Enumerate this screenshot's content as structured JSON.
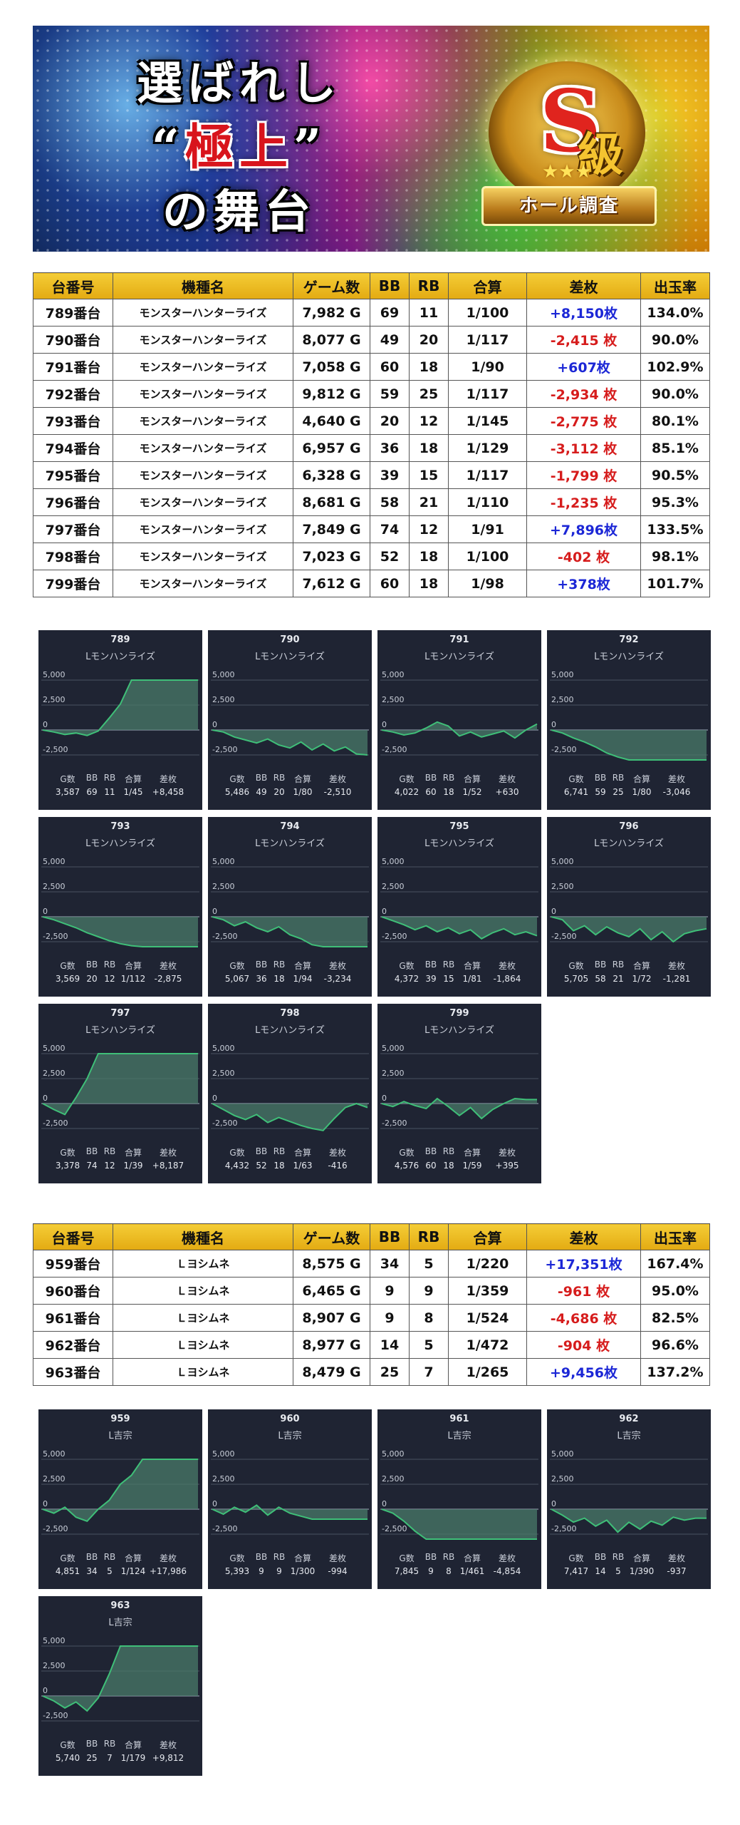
{
  "banner": {
    "line1": "選ばれし",
    "line2_quote_open": "“",
    "line2_red": "極上",
    "line2_quote_close": "”",
    "line3": "の舞台",
    "emblem_grade": "S",
    "emblem_kyu": "級",
    "emblem_stars": "★★★",
    "emblem_ribbon": "ホール調査"
  },
  "table_headers": [
    "台番号",
    "機種名",
    "ゲーム数",
    "BB",
    "RB",
    "合算",
    "差枚",
    "出玉率"
  ],
  "table1": [
    {
      "no": "789番台",
      "machine": "モンスターハンターライズ",
      "games": "7,982 G",
      "bb": "69",
      "rb": "11",
      "total": "1/100",
      "diff": "+8,150枚",
      "sign": "plus",
      "rate": "134.0%"
    },
    {
      "no": "790番台",
      "machine": "モンスターハンターライズ",
      "games": "8,077 G",
      "bb": "49",
      "rb": "20",
      "total": "1/117",
      "diff": "-2,415 枚",
      "sign": "minus",
      "rate": "90.0%"
    },
    {
      "no": "791番台",
      "machine": "モンスターハンターライズ",
      "games": "7,058 G",
      "bb": "60",
      "rb": "18",
      "total": "1/90",
      "diff": "+607枚",
      "sign": "plus",
      "rate": "102.9%"
    },
    {
      "no": "792番台",
      "machine": "モンスターハンターライズ",
      "games": "9,812 G",
      "bb": "59",
      "rb": "25",
      "total": "1/117",
      "diff": "-2,934 枚",
      "sign": "minus",
      "rate": "90.0%"
    },
    {
      "no": "793番台",
      "machine": "モンスターハンターライズ",
      "games": "4,640 G",
      "bb": "20",
      "rb": "12",
      "total": "1/145",
      "diff": "-2,775 枚",
      "sign": "minus",
      "rate": "80.1%"
    },
    {
      "no": "794番台",
      "machine": "モンスターハンターライズ",
      "games": "6,957 G",
      "bb": "36",
      "rb": "18",
      "total": "1/129",
      "diff": "-3,112 枚",
      "sign": "minus",
      "rate": "85.1%"
    },
    {
      "no": "795番台",
      "machine": "モンスターハンターライズ",
      "games": "6,328 G",
      "bb": "39",
      "rb": "15",
      "total": "1/117",
      "diff": "-1,799 枚",
      "sign": "minus",
      "rate": "90.5%"
    },
    {
      "no": "796番台",
      "machine": "モンスターハンターライズ",
      "games": "8,681 G",
      "bb": "58",
      "rb": "21",
      "total": "1/110",
      "diff": "-1,235 枚",
      "sign": "minus",
      "rate": "95.3%"
    },
    {
      "no": "797番台",
      "machine": "モンスターハンターライズ",
      "games": "7,849 G",
      "bb": "74",
      "rb": "12",
      "total": "1/91",
      "diff": "+7,896枚",
      "sign": "plus",
      "rate": "133.5%"
    },
    {
      "no": "798番台",
      "machine": "モンスターハンターライズ",
      "games": "7,023 G",
      "bb": "52",
      "rb": "18",
      "total": "1/100",
      "diff": "-402 枚",
      "sign": "minus",
      "rate": "98.1%"
    },
    {
      "no": "799番台",
      "machine": "モンスターハンターライズ",
      "games": "7,612 G",
      "bb": "60",
      "rb": "18",
      "total": "1/98",
      "diff": "+378枚",
      "sign": "plus",
      "rate": "101.7%"
    }
  ],
  "table2": [
    {
      "no": "959番台",
      "machine": "Ｌヨシムネ",
      "games": "8,575 G",
      "bb": "34",
      "rb": "5",
      "total": "1/220",
      "diff": "+17,351枚",
      "sign": "plus",
      "rate": "167.4%"
    },
    {
      "no": "960番台",
      "machine": "Ｌヨシムネ",
      "games": "6,465 G",
      "bb": "9",
      "rb": "9",
      "total": "1/359",
      "diff": "-961 枚",
      "sign": "minus",
      "rate": "95.0%"
    },
    {
      "no": "961番台",
      "machine": "Ｌヨシムネ",
      "games": "8,907 G",
      "bb": "9",
      "rb": "8",
      "total": "1/524",
      "diff": "-4,686 枚",
      "sign": "minus",
      "rate": "82.5%"
    },
    {
      "no": "962番台",
      "machine": "Ｌヨシムネ",
      "games": "8,977 G",
      "bb": "14",
      "rb": "5",
      "total": "1/472",
      "diff": "-904 枚",
      "sign": "minus",
      "rate": "96.6%"
    },
    {
      "no": "963番台",
      "machine": "Ｌヨシムネ",
      "games": "8,479 G",
      "bb": "25",
      "rb": "7",
      "total": "1/265",
      "diff": "+9,456枚",
      "sign": "plus",
      "rate": "137.2%"
    }
  ],
  "card_labels": {
    "g": "G数",
    "bb": "BB",
    "rb": "RB",
    "total": "合算",
    "diff": "差枚"
  },
  "chart_y_ticks": [
    "5,000",
    "2,500",
    "0",
    "-2,500"
  ],
  "chart_data": {
    "type": "line",
    "ylim": [
      -3000,
      5000
    ],
    "y_ticks": [
      5000,
      2500,
      0,
      -2500
    ],
    "grid": true,
    "line_color": "#3fbf78",
    "fill_color": "#4a7a6a",
    "series": [
      {
        "name": "789",
        "machine": "Lモンハンライズ",
        "g": "3,587",
        "bb": "69",
        "rb": "11",
        "total": "1/45",
        "diff": "+8,458",
        "points": [
          0,
          -200,
          -450,
          -300,
          -550,
          -100,
          1200,
          2600,
          5000,
          5000,
          5000,
          5000,
          5000,
          5000,
          5000
        ]
      },
      {
        "name": "790",
        "machine": "Lモンハンライズ",
        "g": "5,486",
        "bb": "49",
        "rb": "20",
        "total": "1/80",
        "diff": "-2,510",
        "points": [
          0,
          -200,
          -700,
          -1000,
          -1300,
          -900,
          -1500,
          -1800,
          -1200,
          -2000,
          -1400,
          -2100,
          -1700,
          -2400,
          -2500
        ]
      },
      {
        "name": "791",
        "machine": "Lモンハンライズ",
        "g": "4,022",
        "bb": "60",
        "rb": "18",
        "total": "1/52",
        "diff": "+630",
        "points": [
          0,
          -200,
          -500,
          -300,
          200,
          800,
          400,
          -600,
          -200,
          -700,
          -400,
          -100,
          -800,
          0,
          600
        ]
      },
      {
        "name": "792",
        "machine": "Lモンハンライズ",
        "g": "6,741",
        "bb": "59",
        "rb": "25",
        "total": "1/80",
        "diff": "-3,046",
        "points": [
          0,
          -300,
          -800,
          -1200,
          -1700,
          -2300,
          -2700,
          -3000,
          -3000,
          -3000,
          -3000,
          -3000,
          -3000,
          -3000,
          -3000
        ]
      },
      {
        "name": "793",
        "machine": "Lモンハンライズ",
        "g": "3,569",
        "bb": "20",
        "rb": "12",
        "total": "1/112",
        "diff": "-2,875",
        "points": [
          0,
          -300,
          -700,
          -1100,
          -1600,
          -2000,
          -2400,
          -2700,
          -2900,
          -3000,
          -3000,
          -3000,
          -3000,
          -3000,
          -3000
        ]
      },
      {
        "name": "794",
        "machine": "Lモンハンライズ",
        "g": "5,067",
        "bb": "36",
        "rb": "18",
        "total": "1/94",
        "diff": "-3,234",
        "points": [
          0,
          -300,
          -900,
          -500,
          -1100,
          -1500,
          -1000,
          -1800,
          -2200,
          -2800,
          -3000,
          -3000,
          -3000,
          -3000,
          -3000
        ]
      },
      {
        "name": "795",
        "machine": "Lモンハンライズ",
        "g": "4,372",
        "bb": "39",
        "rb": "15",
        "total": "1/81",
        "diff": "-1,864",
        "points": [
          0,
          -400,
          -800,
          -1300,
          -900,
          -1500,
          -1100,
          -1700,
          -1300,
          -2200,
          -1600,
          -1200,
          -1800,
          -1500,
          -1900
        ]
      },
      {
        "name": "796",
        "machine": "Lモンハンライズ",
        "g": "5,705",
        "bb": "58",
        "rb": "21",
        "total": "1/72",
        "diff": "-1,281",
        "points": [
          0,
          -300,
          -1400,
          -900,
          -1800,
          -1000,
          -1600,
          -2000,
          -1200,
          -2300,
          -1500,
          -2500,
          -1700,
          -1400,
          -1200
        ]
      },
      {
        "name": "797",
        "machine": "Lモンハンライズ",
        "g": "3,378",
        "bb": "74",
        "rb": "12",
        "total": "1/39",
        "diff": "+8,187",
        "points": [
          0,
          -600,
          -1100,
          600,
          2500,
          5000,
          5000,
          5000,
          5000,
          5000,
          5000,
          5000,
          5000,
          5000,
          5000
        ]
      },
      {
        "name": "798",
        "machine": "Lモンハンライズ",
        "g": "4,432",
        "bb": "52",
        "rb": "18",
        "total": "1/63",
        "diff": "-416",
        "points": [
          0,
          -600,
          -1200,
          -1600,
          -1100,
          -1900,
          -1400,
          -1800,
          -2200,
          -2500,
          -2700,
          -1500,
          -400,
          0,
          -400
        ]
      },
      {
        "name": "799",
        "machine": "Lモンハンライズ",
        "g": "4,576",
        "bb": "60",
        "rb": "18",
        "total": "1/59",
        "diff": "+395",
        "points": [
          0,
          -300,
          200,
          -200,
          -500,
          500,
          -300,
          -1200,
          -400,
          -1500,
          -600,
          0,
          500,
          400,
          400
        ]
      },
      {
        "name": "959",
        "machine": "L吉宗",
        "g": "4,851",
        "bb": "34",
        "rb": "5",
        "total": "1/124",
        "diff": "+17,986",
        "points": [
          0,
          -400,
          200,
          -800,
          -1200,
          0,
          900,
          2500,
          3400,
          5000,
          5000,
          5000,
          5000,
          5000,
          5000
        ]
      },
      {
        "name": "960",
        "machine": "L吉宗",
        "g": "5,393",
        "bb": "9",
        "rb": "9",
        "total": "1/300",
        "diff": "-994",
        "points": [
          0,
          -500,
          200,
          -300,
          400,
          -600,
          200,
          -400,
          -700,
          -1000,
          -1000,
          -1000,
          -1000,
          -1000,
          -1000
        ]
      },
      {
        "name": "961",
        "machine": "L吉宗",
        "g": "7,845",
        "bb": "9",
        "rb": "8",
        "total": "1/461",
        "diff": "-4,854",
        "points": [
          0,
          -400,
          -1200,
          -2200,
          -3000,
          -3000,
          -3000,
          -3000,
          -3000,
          -3000,
          -3000,
          -3000,
          -3000,
          -3000,
          -3000
        ]
      },
      {
        "name": "962",
        "machine": "L吉宗",
        "g": "7,417",
        "bb": "14",
        "rb": "5",
        "total": "1/390",
        "diff": "-937",
        "points": [
          0,
          -600,
          -1300,
          -900,
          -1700,
          -1100,
          -2300,
          -1300,
          -2000,
          -1200,
          -1600,
          -800,
          -1100,
          -900,
          -900
        ]
      },
      {
        "name": "963",
        "machine": "L吉宗",
        "g": "5,740",
        "bb": "25",
        "rb": "7",
        "total": "1/179",
        "diff": "+9,812",
        "points": [
          0,
          -500,
          -1200,
          -600,
          -1500,
          -200,
          2200,
          5000,
          5000,
          5000,
          5000,
          5000,
          5000,
          5000,
          5000
        ]
      }
    ]
  }
}
